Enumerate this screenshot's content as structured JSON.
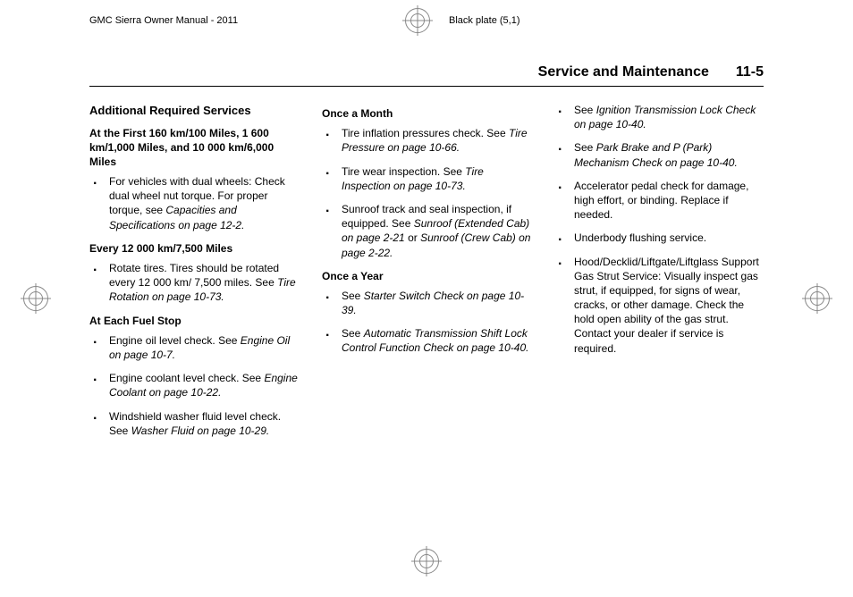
{
  "header": {
    "left": "GMC Sierra Owner Manual - 2011",
    "right": "Black plate (5,1)"
  },
  "section": {
    "title": "Service and Maintenance",
    "page": "11-5"
  },
  "col1": {
    "heading": "Additional Required Services",
    "sub1": "At the First 160 km/100 Miles, 1 600 km/1,000 Miles, and 10 000 km/6,000 Miles",
    "b1a": "For vehicles with dual wheels: Check dual wheel nut torque. For proper torque, see ",
    "b1a_i": "Capacities and Specifications on page 12-2.",
    "sub2": "Every 12 000 km/7,500 Miles",
    "b2a": "Rotate tires. Tires should be rotated every 12 000 km/ 7,500 miles. See ",
    "b2a_i": "Tire Rotation on page 10-73.",
    "sub3": "At Each Fuel Stop",
    "b3a": "Engine oil level check. See ",
    "b3a_i": "Engine Oil on page 10-7.",
    "b3b": "Engine coolant level check. See ",
    "b3b_i": "Engine Coolant on page 10-22.",
    "b3c": "Windshield washer fluid level check. See ",
    "b3c_i": "Washer Fluid on page 10-29."
  },
  "col2": {
    "sub1": "Once a Month",
    "b1a": "Tire inflation pressures check. See ",
    "b1a_i": "Tire Pressure on page 10-66.",
    "b1b": "Tire wear inspection. See ",
    "b1b_i": "Tire Inspection on page 10-73.",
    "b1c": "Sunroof track and seal inspection, if equipped. See ",
    "b1c_i": "Sunroof (Extended Cab) on page 2-21",
    "b1c2": " or ",
    "b1c_i2": "Sunroof (Crew Cab) on page 2-22.",
    "sub2": "Once a Year",
    "b2a": "See ",
    "b2a_i": "Starter Switch Check on page 10-39.",
    "b2b": "See ",
    "b2b_i": "Automatic Transmission Shift Lock Control Function Check on page 10-40."
  },
  "col3": {
    "b1": "See ",
    "b1_i": "Ignition Transmission Lock Check on page 10-40.",
    "b2": "See ",
    "b2_i": "Park Brake and P (Park) Mechanism Check on page 10-40.",
    "b3": "Accelerator pedal check for damage, high effort, or binding. Replace if needed.",
    "b4": "Underbody flushing service.",
    "b5": "Hood/Decklid/Liftgate/Liftglass Support Gas Strut Service: Visually inspect gas strut, if equipped, for signs of wear, cracks, or other damage. Check the hold open ability of the gas strut. Contact your dealer if service is required."
  }
}
